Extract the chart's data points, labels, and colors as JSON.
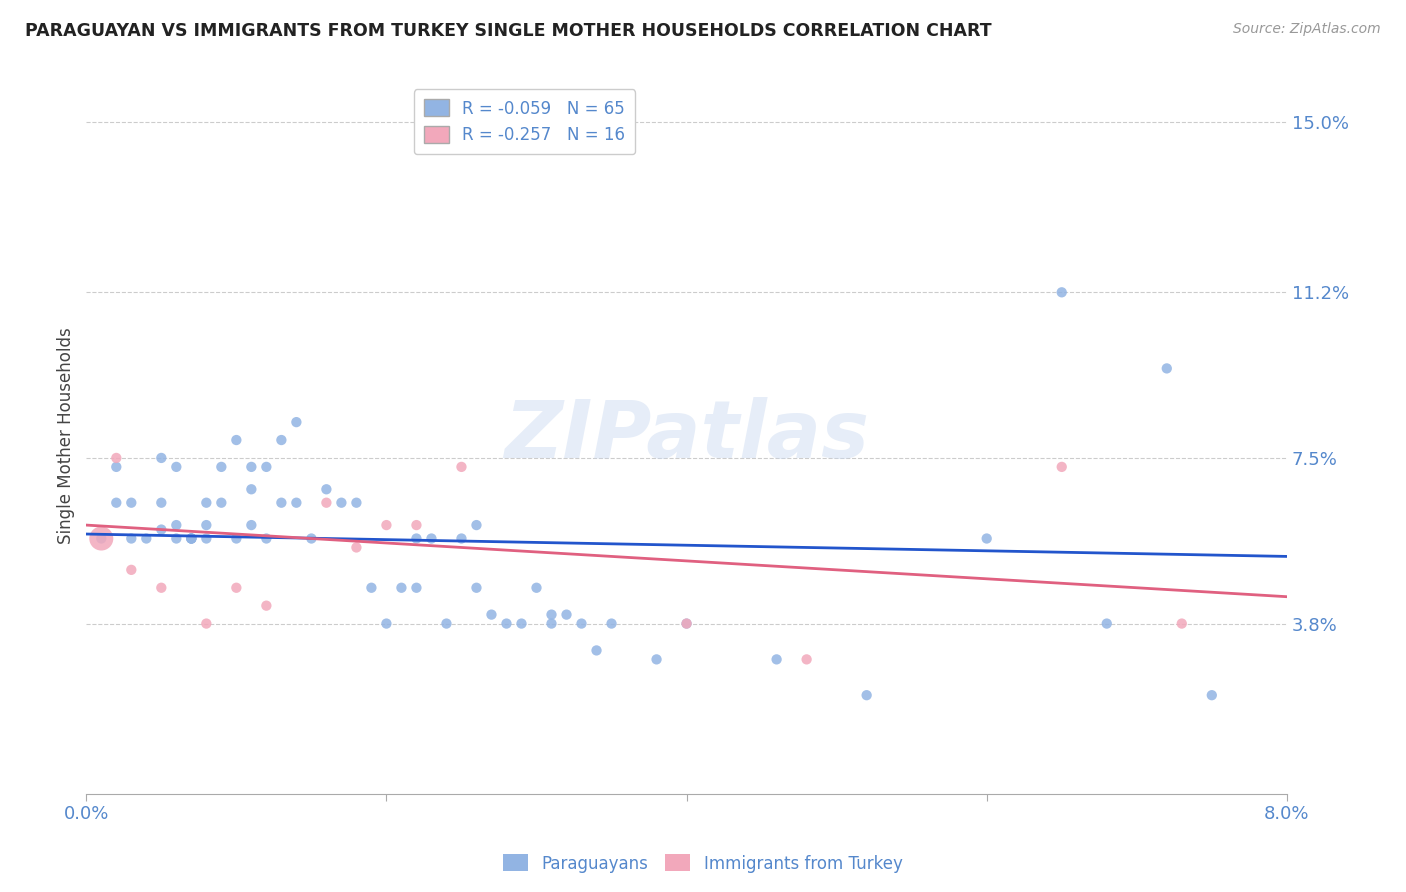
{
  "title": "PARAGUAYAN VS IMMIGRANTS FROM TURKEY SINGLE MOTHER HOUSEHOLDS CORRELATION CHART",
  "source": "Source: ZipAtlas.com",
  "ylabel": "Single Mother Households",
  "xlim": [
    0.0,
    0.08
  ],
  "ylim": [
    0.0,
    0.16
  ],
  "yticks": [
    0.038,
    0.075,
    0.112,
    0.15
  ],
  "ytick_labels": [
    "3.8%",
    "7.5%",
    "11.2%",
    "15.0%"
  ],
  "xticks": [
    0.0,
    0.02,
    0.04,
    0.06,
    0.08
  ],
  "xtick_labels": [
    "0.0%",
    "",
    "",
    "",
    "8.0%"
  ],
  "blue_R": "-0.059",
  "blue_N": "65",
  "pink_R": "-0.257",
  "pink_N": "16",
  "blue_label": "Paraguayans",
  "pink_label": "Immigrants from Turkey",
  "blue_color": "#92b4e3",
  "pink_color": "#f2a8bb",
  "blue_line_color": "#2255cc",
  "pink_line_color": "#e06080",
  "axis_color": "#5588cc",
  "legend_text_color": "#5588cc",
  "watermark": "ZIPatlas",
  "blue_scatter_x": [
    0.001,
    0.002,
    0.002,
    0.003,
    0.003,
    0.004,
    0.005,
    0.005,
    0.005,
    0.006,
    0.006,
    0.006,
    0.007,
    0.007,
    0.007,
    0.007,
    0.008,
    0.008,
    0.008,
    0.009,
    0.009,
    0.01,
    0.01,
    0.011,
    0.011,
    0.011,
    0.012,
    0.012,
    0.013,
    0.013,
    0.014,
    0.014,
    0.015,
    0.016,
    0.017,
    0.018,
    0.019,
    0.02,
    0.021,
    0.022,
    0.022,
    0.023,
    0.024,
    0.025,
    0.026,
    0.026,
    0.027,
    0.028,
    0.029,
    0.03,
    0.031,
    0.031,
    0.032,
    0.033,
    0.034,
    0.035,
    0.038,
    0.04,
    0.046,
    0.052,
    0.06,
    0.065,
    0.068,
    0.072,
    0.075
  ],
  "blue_scatter_y": [
    0.057,
    0.073,
    0.065,
    0.057,
    0.065,
    0.057,
    0.075,
    0.065,
    0.059,
    0.073,
    0.057,
    0.06,
    0.057,
    0.057,
    0.057,
    0.057,
    0.06,
    0.065,
    0.057,
    0.073,
    0.065,
    0.079,
    0.057,
    0.073,
    0.068,
    0.06,
    0.073,
    0.057,
    0.065,
    0.079,
    0.065,
    0.083,
    0.057,
    0.068,
    0.065,
    0.065,
    0.046,
    0.038,
    0.046,
    0.057,
    0.046,
    0.057,
    0.038,
    0.057,
    0.046,
    0.06,
    0.04,
    0.038,
    0.038,
    0.046,
    0.04,
    0.038,
    0.04,
    0.038,
    0.032,
    0.038,
    0.03,
    0.038,
    0.03,
    0.022,
    0.057,
    0.112,
    0.038,
    0.095,
    0.022
  ],
  "blue_scatter_sizes": [
    55,
    55,
    55,
    55,
    55,
    55,
    55,
    55,
    55,
    55,
    55,
    55,
    55,
    55,
    55,
    55,
    55,
    55,
    55,
    55,
    55,
    55,
    55,
    55,
    55,
    55,
    55,
    55,
    55,
    55,
    55,
    55,
    55,
    55,
    55,
    55,
    55,
    55,
    55,
    55,
    55,
    55,
    55,
    55,
    55,
    55,
    55,
    55,
    55,
    55,
    55,
    55,
    55,
    55,
    55,
    55,
    55,
    55,
    55,
    55,
    55,
    55,
    55,
    55,
    55
  ],
  "pink_scatter_x": [
    0.001,
    0.002,
    0.003,
    0.005,
    0.008,
    0.01,
    0.012,
    0.016,
    0.018,
    0.02,
    0.022,
    0.025,
    0.04,
    0.048,
    0.065,
    0.073
  ],
  "pink_scatter_y": [
    0.057,
    0.075,
    0.05,
    0.046,
    0.038,
    0.046,
    0.042,
    0.065,
    0.055,
    0.06,
    0.06,
    0.073,
    0.038,
    0.03,
    0.073,
    0.038
  ],
  "pink_scatter_sizes": [
    300,
    55,
    55,
    55,
    55,
    55,
    55,
    55,
    55,
    55,
    55,
    55,
    55,
    55,
    55,
    55
  ],
  "blue_trend": [
    0.0,
    0.08,
    0.058,
    0.053
  ],
  "pink_trend": [
    0.0,
    0.08,
    0.06,
    0.044
  ]
}
